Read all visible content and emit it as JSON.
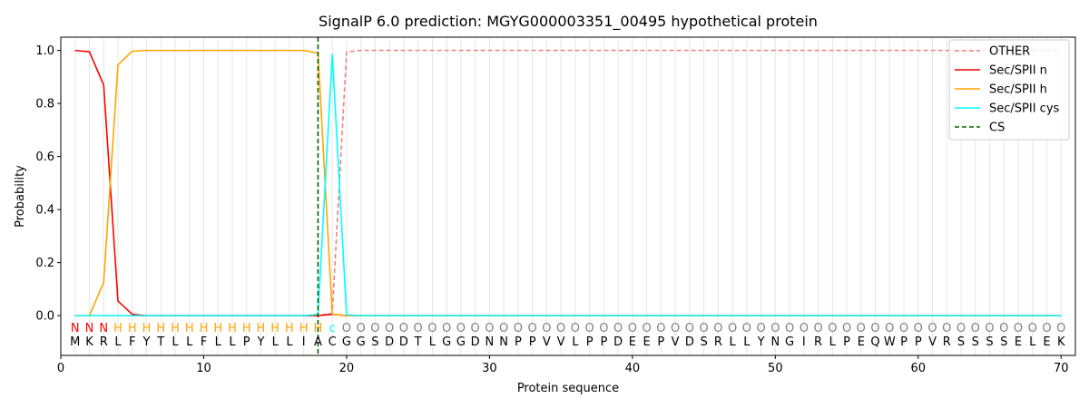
{
  "chart_data": {
    "type": "line",
    "title": "SignalP 6.0 prediction: MGYG000003351_00495 hypothetical protein",
    "xlabel": "Protein sequence",
    "ylabel": "Probability",
    "xlim": [
      0,
      71
    ],
    "ylim": [
      -0.15,
      1.05
    ],
    "xticks": [
      0,
      10,
      20,
      30,
      40,
      50,
      60,
      70
    ],
    "yticks": [
      "0.0",
      "0.2",
      "0.4",
      "0.6",
      "0.8",
      "1.0"
    ],
    "ytick_values": [
      0.0,
      0.2,
      0.4,
      0.6,
      0.8,
      1.0
    ],
    "legend_position": "top-right",
    "sequence": [
      "M",
      "K",
      "R",
      "L",
      "F",
      "Y",
      "T",
      "L",
      "L",
      "F",
      "L",
      "L",
      "P",
      "Y",
      "L",
      "L",
      "I",
      "A",
      "C",
      "G",
      "G",
      "S",
      "D",
      "D",
      "T",
      "L",
      "G",
      "G",
      "D",
      "N",
      "N",
      "P",
      "P",
      "V",
      "V",
      "L",
      "P",
      "P",
      "D",
      "E",
      "E",
      "P",
      "V",
      "D",
      "S",
      "R",
      "L",
      "L",
      "Y",
      "N",
      "G",
      "I",
      "R",
      "L",
      "P",
      "E",
      "Q",
      "W",
      "P",
      "P",
      "V",
      "R",
      "S",
      "S",
      "S",
      "S",
      "E",
      "L",
      "E",
      "K"
    ],
    "prediction": [
      "N",
      "N",
      "N",
      "H",
      "H",
      "H",
      "H",
      "H",
      "H",
      "H",
      "H",
      "H",
      "H",
      "H",
      "H",
      "H",
      "H",
      "H",
      "c",
      "O",
      "O",
      "O",
      "O",
      "O",
      "O",
      "O",
      "O",
      "O",
      "O",
      "O",
      "O",
      "O",
      "O",
      "O",
      "O",
      "O",
      "O",
      "O",
      "O",
      "O",
      "O",
      "O",
      "O",
      "O",
      "O",
      "O",
      "O",
      "O",
      "O",
      "O",
      "O",
      "O",
      "O",
      "O",
      "O",
      "O",
      "O",
      "O",
      "O",
      "O",
      "O",
      "O",
      "O",
      "O",
      "O",
      "O",
      "O",
      "O",
      "O",
      "O"
    ],
    "prediction_colors": {
      "N": "#ff0000",
      "H": "#ffa500",
      "c": "#00ffff",
      "O": "#808080"
    },
    "cleavage_site": 18,
    "series": [
      {
        "name": "OTHER",
        "color": "#f08080",
        "dash": true,
        "values": [
          0,
          0,
          0,
          0,
          0,
          0,
          0,
          0,
          0,
          0,
          0,
          0,
          0,
          0,
          0,
          0,
          0,
          0,
          0.01,
          0.995,
          1,
          1,
          1,
          1,
          1,
          1,
          1,
          1,
          1,
          1,
          1,
          1,
          1,
          1,
          1,
          1,
          1,
          1,
          1,
          1,
          1,
          1,
          1,
          1,
          1,
          1,
          1,
          1,
          1,
          1,
          1,
          1,
          1,
          1,
          1,
          1,
          1,
          1,
          1,
          1,
          1,
          1,
          1,
          1,
          1,
          1,
          1,
          1,
          1,
          1
        ]
      },
      {
        "name": "Sec/SPII n",
        "color": "#ff0000",
        "dash": false,
        "values": [
          1.0,
          0.995,
          0.87,
          0.055,
          0.005,
          0,
          0,
          0,
          0,
          0,
          0,
          0,
          0,
          0,
          0,
          0,
          0,
          0,
          0.005,
          0,
          0,
          0,
          0,
          0,
          0,
          0,
          0,
          0,
          0,
          0,
          0,
          0,
          0,
          0,
          0,
          0,
          0,
          0,
          0,
          0,
          0,
          0,
          0,
          0,
          0,
          0,
          0,
          0,
          0,
          0,
          0,
          0,
          0,
          0,
          0,
          0,
          0,
          0,
          0,
          0,
          0,
          0,
          0,
          0,
          0,
          0,
          0,
          0,
          0,
          0
        ]
      },
      {
        "name": "Sec/SPII h",
        "color": "#ffa500",
        "dash": false,
        "values": [
          0,
          0,
          0.125,
          0.945,
          0.997,
          1.0,
          1.0,
          1.0,
          1.0,
          1.0,
          1.0,
          1.0,
          1.0,
          1.0,
          1.0,
          1.0,
          1.0,
          0.99,
          0.005,
          0,
          0,
          0,
          0,
          0,
          0,
          0,
          0,
          0,
          0,
          0,
          0,
          0,
          0,
          0,
          0,
          0,
          0,
          0,
          0,
          0,
          0,
          0,
          0,
          0,
          0,
          0,
          0,
          0,
          0,
          0,
          0,
          0,
          0,
          0,
          0,
          0,
          0,
          0,
          0,
          0,
          0,
          0,
          0,
          0,
          0,
          0,
          0,
          0,
          0,
          0
        ]
      },
      {
        "name": "Sec/SPII cys",
        "color": "#00ffff",
        "dash": false,
        "values": [
          0,
          0,
          0,
          0,
          0,
          0,
          0,
          0,
          0,
          0,
          0,
          0,
          0,
          0,
          0,
          0,
          0,
          0.005,
          0.985,
          0.003,
          0,
          0,
          0,
          0,
          0,
          0,
          0,
          0,
          0,
          0,
          0,
          0,
          0,
          0,
          0,
          0,
          0,
          0,
          0,
          0,
          0,
          0,
          0,
          0,
          0,
          0,
          0,
          0,
          0,
          0,
          0,
          0,
          0,
          0,
          0,
          0,
          0,
          0,
          0,
          0,
          0,
          0,
          0,
          0,
          0,
          0,
          0,
          0,
          0,
          0
        ]
      }
    ],
    "legend": [
      {
        "name": "OTHER",
        "color": "#f08080",
        "dash": true
      },
      {
        "name": "Sec/SPII n",
        "color": "#ff0000",
        "dash": false
      },
      {
        "name": "Sec/SPII h",
        "color": "#ffa500",
        "dash": false
      },
      {
        "name": "Sec/SPII cys",
        "color": "#00ffff",
        "dash": false
      },
      {
        "name": "CS",
        "color": "#006400",
        "dash": true
      }
    ]
  }
}
